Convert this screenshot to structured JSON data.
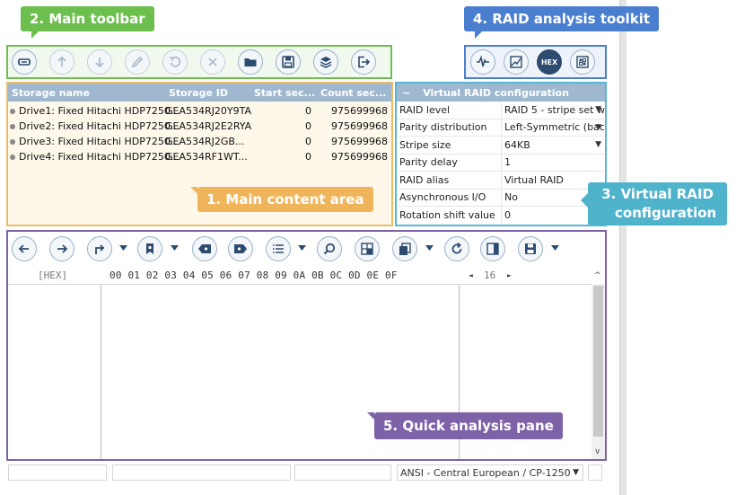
{
  "callouts": {
    "main_toolbar": "2. Main toolbar",
    "raid_toolkit": "4. RAID analysis toolkit",
    "main_content": "1. Main content area",
    "virtual_raid_line1": "3. Virtual RAID",
    "virtual_raid_line2": "configuration",
    "quick_analysis": "5. Quick analysis pane"
  },
  "raid_toolkit": {
    "hex_label": "HEX"
  },
  "storage": {
    "columns": [
      "Storage name",
      "Storage ID",
      "Start sec...",
      "Count sec..."
    ],
    "rows": [
      {
        "name": "Drive1: Fixed Hitachi HDP7250...",
        "id": "GEA534RJ20Y9TA",
        "start": "0",
        "count": "975699968"
      },
      {
        "name": "Drive2: Fixed Hitachi HDP7250...",
        "id": "GEA534RJ2E2RYA",
        "start": "0",
        "count": "975699968"
      },
      {
        "name": "Drive3: Fixed Hitachi HDP7250...",
        "id": "GEA534RJ2GB...",
        "start": "0",
        "count": "975699968"
      },
      {
        "name": "Drive4: Fixed Hitachi HDP7250...",
        "id": "GEA534RF1WT...",
        "start": "0",
        "count": "975699968"
      }
    ]
  },
  "raid_config": {
    "minus": "−",
    "title": "Virtual RAID configuration",
    "rows": [
      {
        "key": "RAID level",
        "value": "RAID 5 - stripe set w"
      },
      {
        "key": "Parity distribution",
        "value": "Left-Symmetric (bac"
      },
      {
        "key": "Stripe size",
        "value": "64KB"
      },
      {
        "key": "Parity delay",
        "value": "1"
      },
      {
        "key": "RAID alias",
        "value": "Virtual RAID"
      },
      {
        "key": "Asynchronous I/O",
        "value": "No"
      },
      {
        "key": "Rotation shift value",
        "value": "0"
      }
    ],
    "arrow": "▼"
  },
  "hex": {
    "mode": "[HEX]",
    "offsets": "00 01 02 03 04 05 06 07 08 09 0A 0B 0C 0D 0E 0F",
    "width": "16",
    "left_arrow": "◄",
    "right_arrow": "►"
  },
  "scrollbar": {
    "up": "^",
    "down": "v"
  },
  "status_bar": {
    "encoding": "ANSI - Central European / CP-1250",
    "dropdown_arrow": "▼"
  },
  "colors": {
    "toolbar_border": "#6cbf4c",
    "raid_toolkit_border": "#4a7fcf",
    "content_border": "#e9bc6b",
    "raid_config_border": "#58b7d0",
    "hex_pane_border": "#7e62a8",
    "header_fill": "#9fb8cf"
  },
  "icons": {
    "main_toolbar": [
      "drive-scan-icon",
      "arrow-up-icon",
      "arrow-down-icon",
      "pencil-icon",
      "undo-icon",
      "close-icon",
      "folder-open-icon",
      "save-icon",
      "layers-icon",
      "exit-icon"
    ],
    "raid_toolkit": [
      "waveform-icon",
      "chart-icon",
      "hex-icon",
      "grid-icon"
    ],
    "hex_toolbar": [
      "back-icon",
      "forward-icon",
      "redirect-icon",
      "bookmark-icon",
      "tag-prev-icon",
      "tag-next-icon",
      "list-icon",
      "search-icon",
      "layout-icon",
      "copy-icon",
      "refresh-icon",
      "split-icon",
      "save-icon"
    ]
  }
}
